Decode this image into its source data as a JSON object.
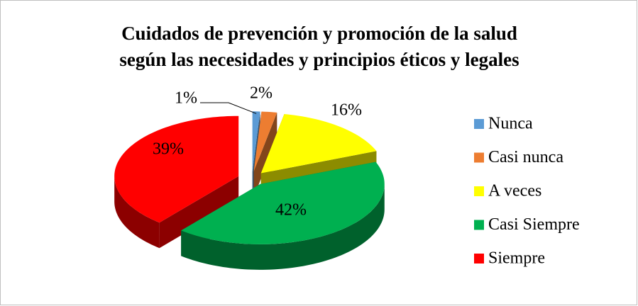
{
  "chart_data": {
    "type": "pie3d",
    "title": [
      "Cuidados de prevención y promoción de la salud",
      "según las necesidades y principios éticos y legales"
    ],
    "categories": [
      "Nunca",
      "Casi nunca",
      "A veces",
      "Casi Siempre",
      "Siempre"
    ],
    "values": [
      1,
      2,
      16,
      42,
      39
    ],
    "value_labels": [
      "1%",
      "2%",
      "16%",
      "42%",
      "39%"
    ],
    "colors": [
      "#5b9bd5",
      "#ed7d31",
      "#ffff00",
      "#00b050",
      "#ff0000"
    ],
    "legend": "right"
  }
}
